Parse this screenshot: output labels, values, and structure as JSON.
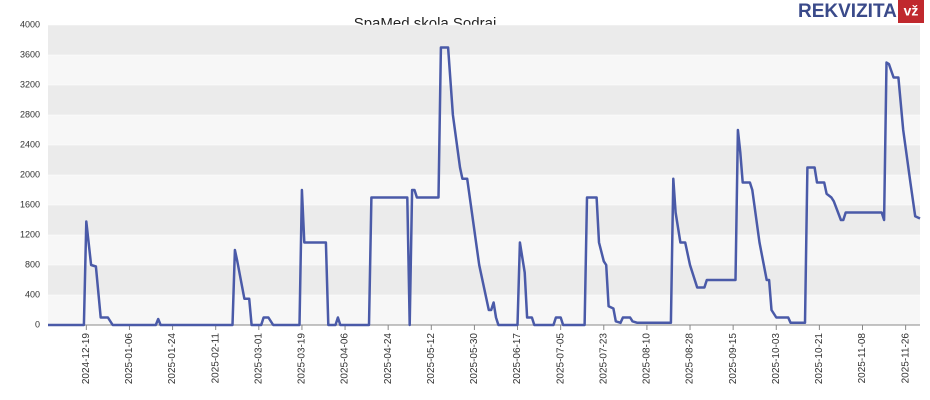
{
  "chart_data": {
    "type": "line",
    "title": "SpaMed skola Sodrai",
    "logo": "REKVIZITAI",
    "logo_badge": "vž",
    "xlim": [
      "2024-12-03",
      "2025-12-02"
    ],
    "xticks": [
      "2024-12-19",
      "2025-01-06",
      "2025-01-24",
      "2025-02-11",
      "2025-03-01",
      "2025-03-19",
      "2025-04-06",
      "2025-04-24",
      "2025-05-12",
      "2025-05-30",
      "2025-06-17",
      "2025-07-05",
      "2025-07-23",
      "2025-08-10",
      "2025-08-28",
      "2025-09-15",
      "2025-10-03",
      "2025-10-21",
      "2025-11-08",
      "2025-11-26"
    ],
    "ylim": [
      0,
      4000
    ],
    "yticks": [
      0,
      400,
      800,
      1200,
      1600,
      2000,
      2400,
      2800,
      3200,
      3600,
      4000
    ],
    "grid": true,
    "x": [
      "2024-12-03",
      "2024-12-18",
      "2024-12-19",
      "2024-12-21",
      "2024-12-23",
      "2024-12-25",
      "2024-12-28",
      "2024-12-30",
      "2025-01-17",
      "2025-01-18",
      "2025-01-19",
      "2025-02-18",
      "2025-02-19",
      "2025-02-20",
      "2025-02-23",
      "2025-02-25",
      "2025-02-26",
      "2025-03-02",
      "2025-03-03",
      "2025-03-05",
      "2025-03-07",
      "2025-03-18",
      "2025-03-19",
      "2025-03-20",
      "2025-03-29",
      "2025-03-30",
      "2025-04-02",
      "2025-04-03",
      "2025-04-04",
      "2025-04-16",
      "2025-04-17",
      "2025-05-02",
      "2025-05-03",
      "2025-05-04",
      "2025-05-05",
      "2025-05-06",
      "2025-05-15",
      "2025-05-16",
      "2025-05-19",
      "2025-05-21",
      "2025-05-24",
      "2025-05-25",
      "2025-05-27",
      "2025-06-01",
      "2025-06-05",
      "2025-06-06",
      "2025-06-07",
      "2025-06-08",
      "2025-06-09",
      "2025-06-17",
      "2025-06-18",
      "2025-06-20",
      "2025-06-21",
      "2025-06-23",
      "2025-06-24",
      "2025-07-02",
      "2025-07-03",
      "2025-07-05",
      "2025-07-06",
      "2025-07-15",
      "2025-07-16",
      "2025-07-20",
      "2025-07-21",
      "2025-07-23",
      "2025-07-24",
      "2025-07-25",
      "2025-07-27",
      "2025-07-28",
      "2025-07-30",
      "2025-07-31",
      "2025-08-03",
      "2025-08-04",
      "2025-08-06",
      "2025-08-20",
      "2025-08-21",
      "2025-08-22",
      "2025-08-24",
      "2025-08-26",
      "2025-08-28",
      "2025-08-31",
      "2025-09-03",
      "2025-09-04",
      "2025-09-16",
      "2025-09-17",
      "2025-09-18",
      "2025-09-19",
      "2025-09-22",
      "2025-09-23",
      "2025-09-26",
      "2025-09-29",
      "2025-09-30",
      "2025-10-01",
      "2025-10-03",
      "2025-10-08",
      "2025-10-09",
      "2025-10-15",
      "2025-10-16",
      "2025-10-19",
      "2025-10-20",
      "2025-10-23",
      "2025-10-24",
      "2025-10-26",
      "2025-10-27",
      "2025-10-30",
      "2025-10-31",
      "2025-11-01",
      "2025-11-16",
      "2025-11-17",
      "2025-11-18",
      "2025-11-19",
      "2025-11-21",
      "2025-11-23",
      "2025-11-25",
      "2025-11-28",
      "2025-11-30",
      "2025-12-02"
    ],
    "series": [
      {
        "color": "#4a5aa8",
        "values": [
          0,
          0,
          1380,
          800,
          780,
          100,
          100,
          0,
          0,
          80,
          0,
          0,
          1000,
          850,
          350,
          350,
          0,
          0,
          100,
          100,
          0,
          0,
          1800,
          1100,
          1100,
          0,
          0,
          100,
          0,
          0,
          1700,
          1700,
          0,
          1800,
          1800,
          1700,
          1700,
          3700,
          3700,
          2800,
          2100,
          1950,
          1950,
          800,
          200,
          200,
          300,
          100,
          0,
          0,
          1100,
          700,
          100,
          100,
          0,
          0,
          100,
          100,
          0,
          0,
          1700,
          1700,
          1100,
          850,
          800,
          250,
          220,
          50,
          30,
          100,
          100,
          50,
          30,
          30,
          1950,
          1500,
          1100,
          1100,
          800,
          500,
          500,
          600,
          600,
          2600,
          2300,
          1900,
          1900,
          1800,
          1100,
          600,
          600,
          200,
          100,
          100,
          30,
          30,
          2100,
          2100,
          1900,
          1900,
          1750,
          1700,
          1650,
          1400,
          1400,
          1500,
          1500,
          1400,
          3500,
          3480,
          3300,
          3300,
          2600,
          1900,
          1450,
          1420
        ]
      }
    ]
  }
}
